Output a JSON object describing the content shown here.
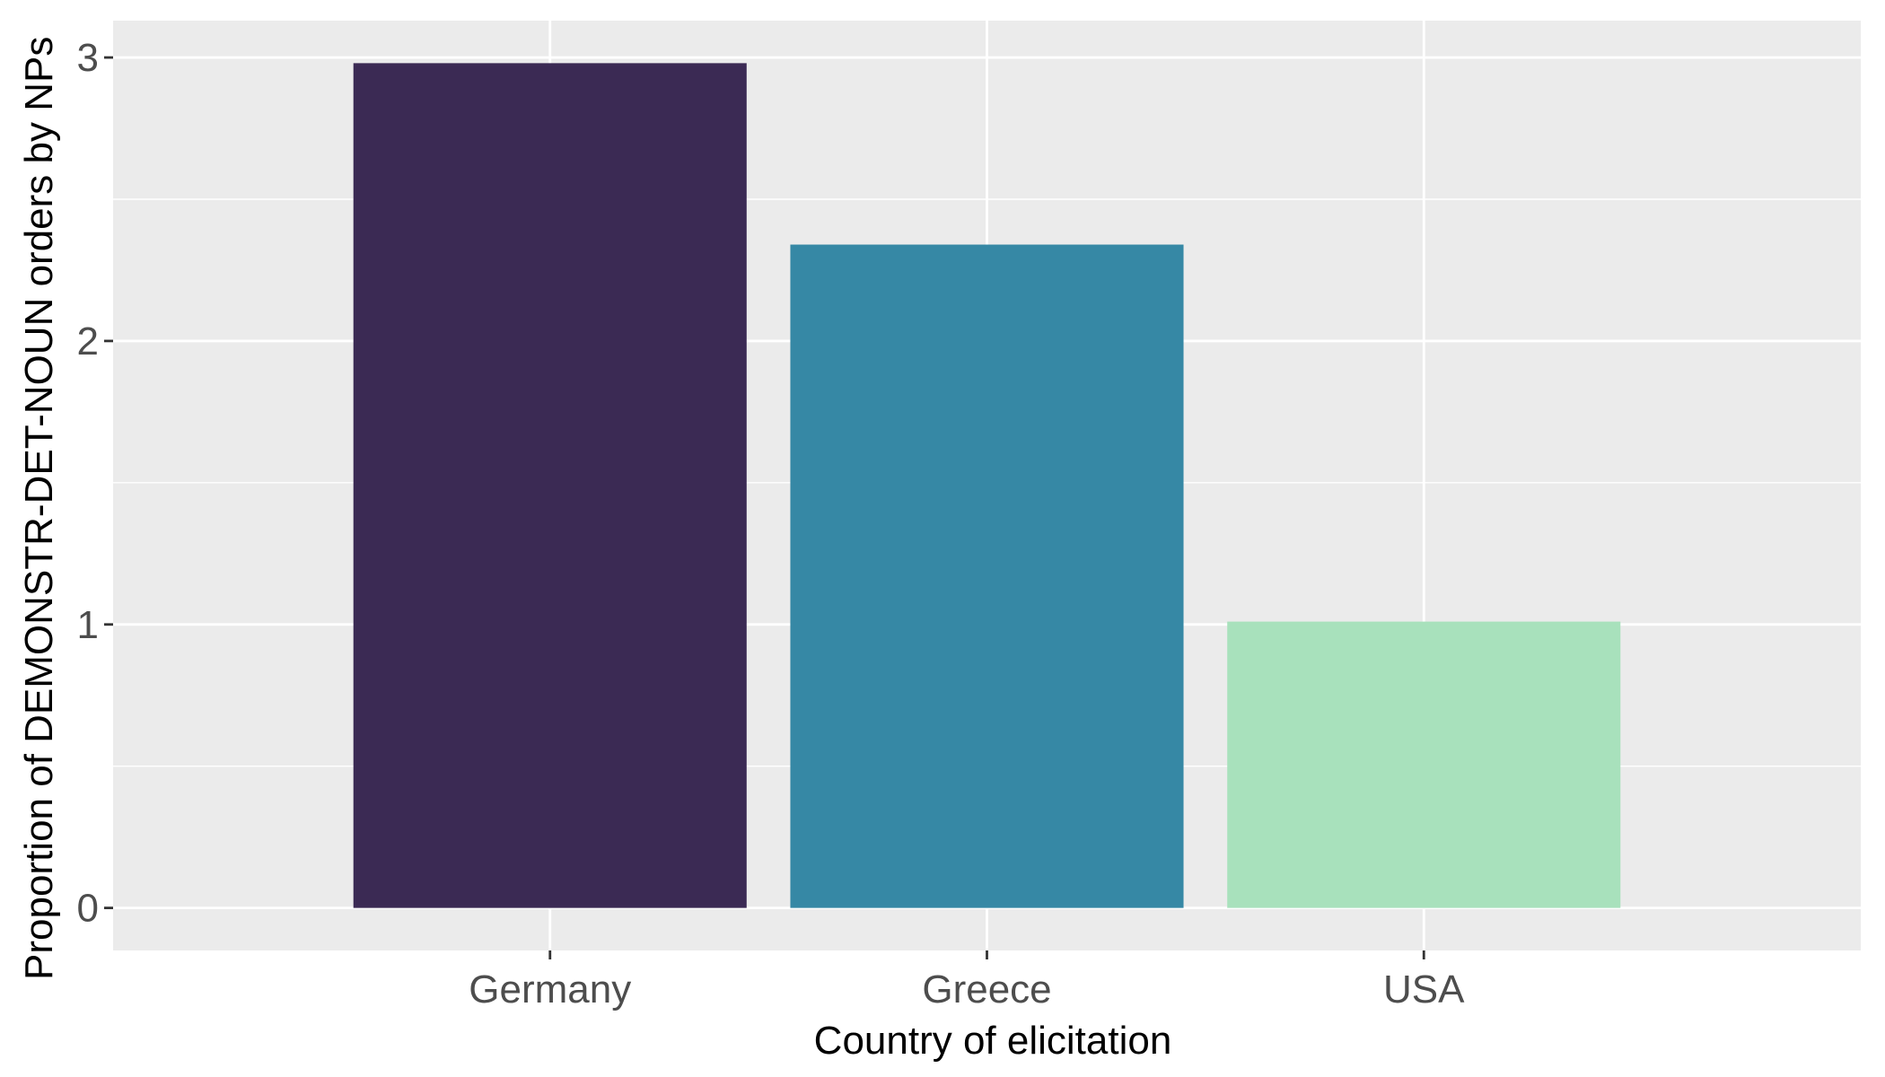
{
  "chart_data": {
    "type": "bar",
    "title": "",
    "xlabel": "Country of elicitation",
    "ylabel": "Proportion of DEMONSTR-DET-NOUN orders by NPs",
    "categories": [
      "Germany",
      "Greece",
      "USA"
    ],
    "values": [
      2.98,
      2.34,
      1.01
    ],
    "colors": [
      "#3b2a54",
      "#3688a5",
      "#a8e1bc"
    ],
    "ylim": [
      -0.15,
      3.13
    ],
    "yticks": [
      0,
      1,
      2,
      3
    ],
    "grid": true,
    "legend": "none",
    "panel_background": "#ebebeb",
    "gridline_color": "#ffffff"
  }
}
